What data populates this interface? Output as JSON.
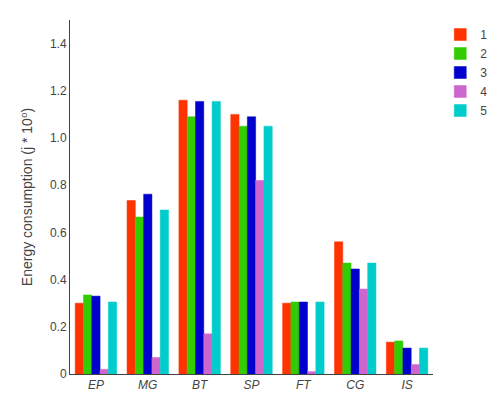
{
  "chart_data": {
    "type": "bar",
    "categories": [
      "EP",
      "MG",
      "BT",
      "SP",
      "FT",
      "CG",
      "IS"
    ],
    "series": [
      {
        "name": "1",
        "color": "#FF3300",
        "values": [
          0.3,
          0.735,
          1.16,
          1.1,
          0.3,
          0.56,
          0.135
        ]
      },
      {
        "name": "2",
        "color": "#33CC00",
        "values": [
          0.335,
          0.665,
          1.09,
          1.05,
          0.305,
          0.47,
          0.14
        ]
      },
      {
        "name": "3",
        "color": "#0000CC",
        "values": [
          0.33,
          0.762,
          1.155,
          1.09,
          0.305,
          0.445,
          0.11
        ]
      },
      {
        "name": "4",
        "color": "#CC66CC",
        "values": [
          0.02,
          0.07,
          0.17,
          0.82,
          0.01,
          0.36,
          0.04
        ]
      },
      {
        "name": "5",
        "color": "#00CCCC",
        "values": [
          0.305,
          0.695,
          1.155,
          1.05,
          0.305,
          0.47,
          0.11
        ]
      }
    ],
    "ylabel": "Energy consumption (j * 10⁰)",
    "ylim": [
      0,
      1.5
    ],
    "yticks": [
      0,
      0.2,
      0.4,
      0.6,
      0.8,
      {
        "value": 1.0,
        "label": "1.0"
      },
      1.2,
      1.4
    ],
    "grid": false,
    "legend": "right"
  }
}
